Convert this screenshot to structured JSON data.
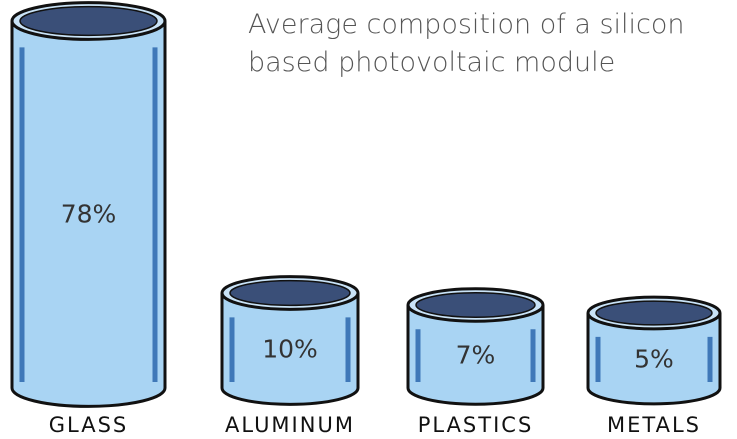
{
  "chart_data": {
    "type": "bar",
    "title": "Average composition of a silicon based photovoltaic module",
    "categories": [
      "GLASS",
      "ALUMINUM",
      "PLASTICS",
      "METALS"
    ],
    "values": [
      78,
      10,
      7,
      5
    ],
    "value_labels": [
      "78%",
      "10%",
      "7%",
      "5%"
    ],
    "color": "#a9d4f3"
  }
}
